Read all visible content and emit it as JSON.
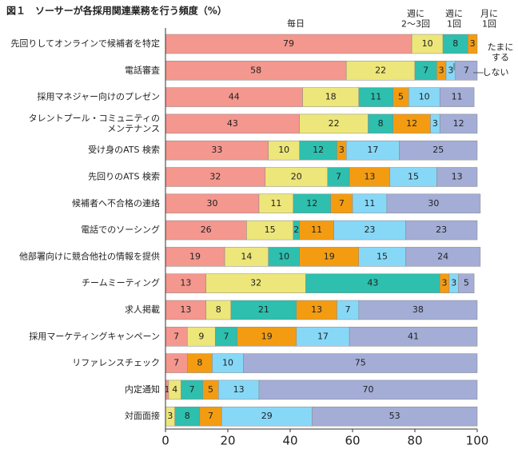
{
  "chart_data": {
    "type": "stacked-bar-horizontal",
    "title": "図１　ソーサーが各採用関連業務を行う頻度（%）",
    "categories": [
      "先回りしてオンラインで候補者を特定",
      "電話審査",
      "採用マネジャー向けのプレゼン",
      "タレントプール・コミュニティの\nメンテナンス",
      "受け身のATS 検索",
      "先回りのATS 検索",
      "候補者へ不合格の連絡",
      "電話でのソーシング",
      "他部署向けに競合他社の情報を提供",
      "チームミーティング",
      "求人掲載",
      "採用マーケティングキャンペーン",
      "リファレンスチェック",
      "内定通知",
      "対面面接"
    ],
    "series": [
      {
        "name": "毎日",
        "color": "#f4978e",
        "values": [
          79,
          58,
          44,
          43,
          33,
          32,
          30,
          26,
          19,
          13,
          13,
          7,
          7,
          1,
          0
        ]
      },
      {
        "name": "週に\n2～3回",
        "color": "#ede67a",
        "values": [
          10,
          22,
          18,
          22,
          10,
          20,
          11,
          15,
          14,
          32,
          8,
          9,
          0,
          4,
          3
        ]
      },
      {
        "name": "週に\n1回",
        "color": "#2ebfae",
        "values": [
          8,
          7,
          11,
          8,
          12,
          7,
          12,
          2,
          10,
          43,
          21,
          7,
          0,
          7,
          8
        ]
      },
      {
        "name": "月に\n1回",
        "color": "#f39c12",
        "values": [
          3,
          3,
          5,
          12,
          3,
          13,
          7,
          11,
          19,
          3,
          13,
          19,
          8,
          5,
          7
        ]
      },
      {
        "name": "たまに\nする",
        "color": "#87d8f7",
        "values": [
          0,
          3,
          10,
          3,
          17,
          15,
          11,
          23,
          15,
          3,
          7,
          17,
          10,
          13,
          29
        ]
      },
      {
        "name": "しない",
        "color": "#a3add6",
        "values": [
          0,
          7,
          11,
          12,
          25,
          13,
          30,
          23,
          24,
          5,
          38,
          41,
          75,
          70,
          53
        ]
      }
    ],
    "xlim": [
      0,
      100
    ],
    "xticks": [
      0,
      20,
      40,
      60,
      80,
      100
    ]
  }
}
